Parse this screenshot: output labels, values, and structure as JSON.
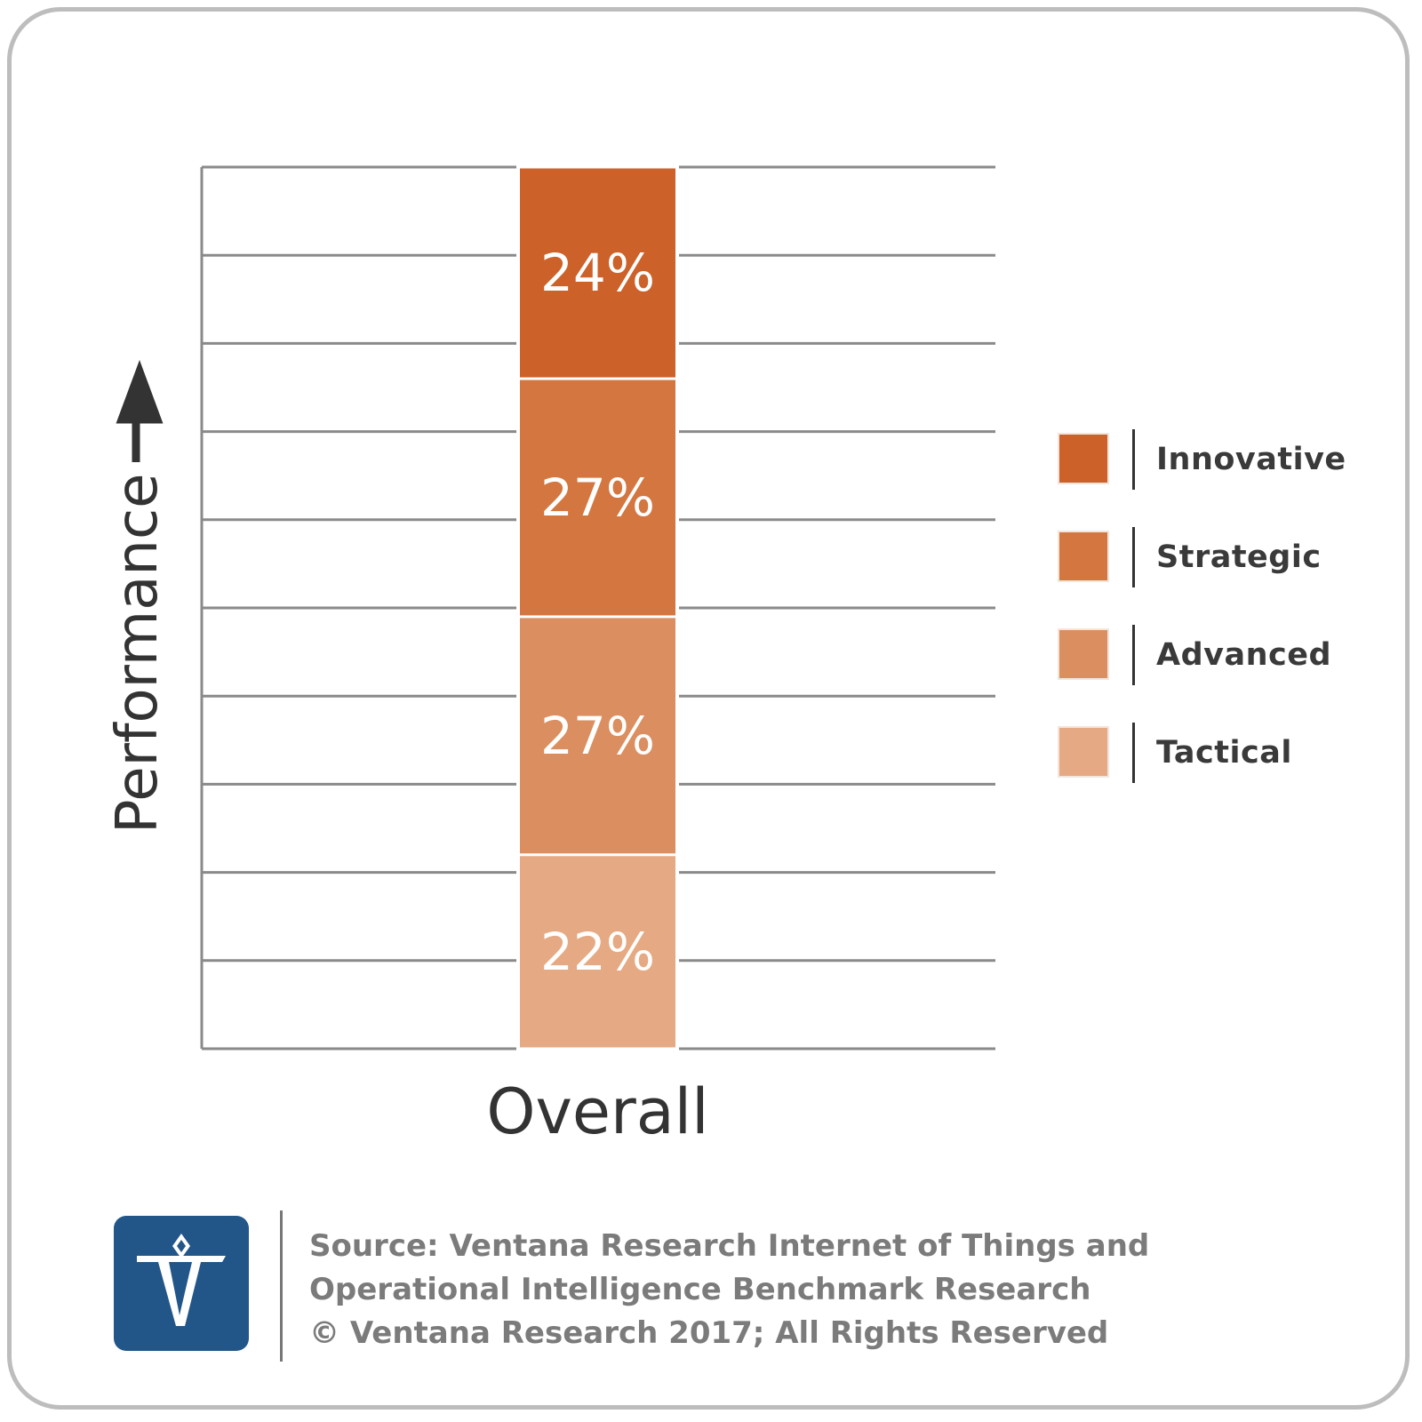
{
  "chart_data": {
    "type": "bar",
    "stacked": true,
    "categories": [
      "Overall"
    ],
    "series": [
      {
        "name": "Tactical",
        "values": [
          22
        ],
        "color": "#e5aa83"
      },
      {
        "name": "Advanced",
        "values": [
          27
        ],
        "color": "#db8e5f"
      },
      {
        "name": "Strategic",
        "values": [
          27
        ],
        "color": "#d3763f"
      },
      {
        "name": "Innovative",
        "values": [
          24
        ],
        "color": "#cc6129"
      }
    ],
    "data_labels": [
      "22%",
      "27%",
      "27%",
      "24%"
    ],
    "ylabel": "Performance",
    "ylim": [
      0,
      100
    ],
    "grid": true,
    "legend_position": "right",
    "y_axis_arrow_icon": "arrow-up-icon"
  },
  "legend": {
    "items": [
      {
        "label": "Innovative",
        "color": "#cc6129"
      },
      {
        "label": "Strategic",
        "color": "#d3763f"
      },
      {
        "label": "Advanced",
        "color": "#db8e5f"
      },
      {
        "label": "Tactical",
        "color": "#e5aa83"
      }
    ]
  },
  "footer": {
    "logo_icon": "ventana-logo-icon",
    "lines": [
      "Source: Ventana Research Internet of Things and",
      "Operational Intelligence Benchmark Research",
      "© Ventana Research 2017; All Rights Reserved"
    ]
  },
  "colors": {
    "grid": "#8a8a8a",
    "axis_text": "#333333",
    "logo_bg": "#235688",
    "footer_text": "#7b7b7b"
  }
}
